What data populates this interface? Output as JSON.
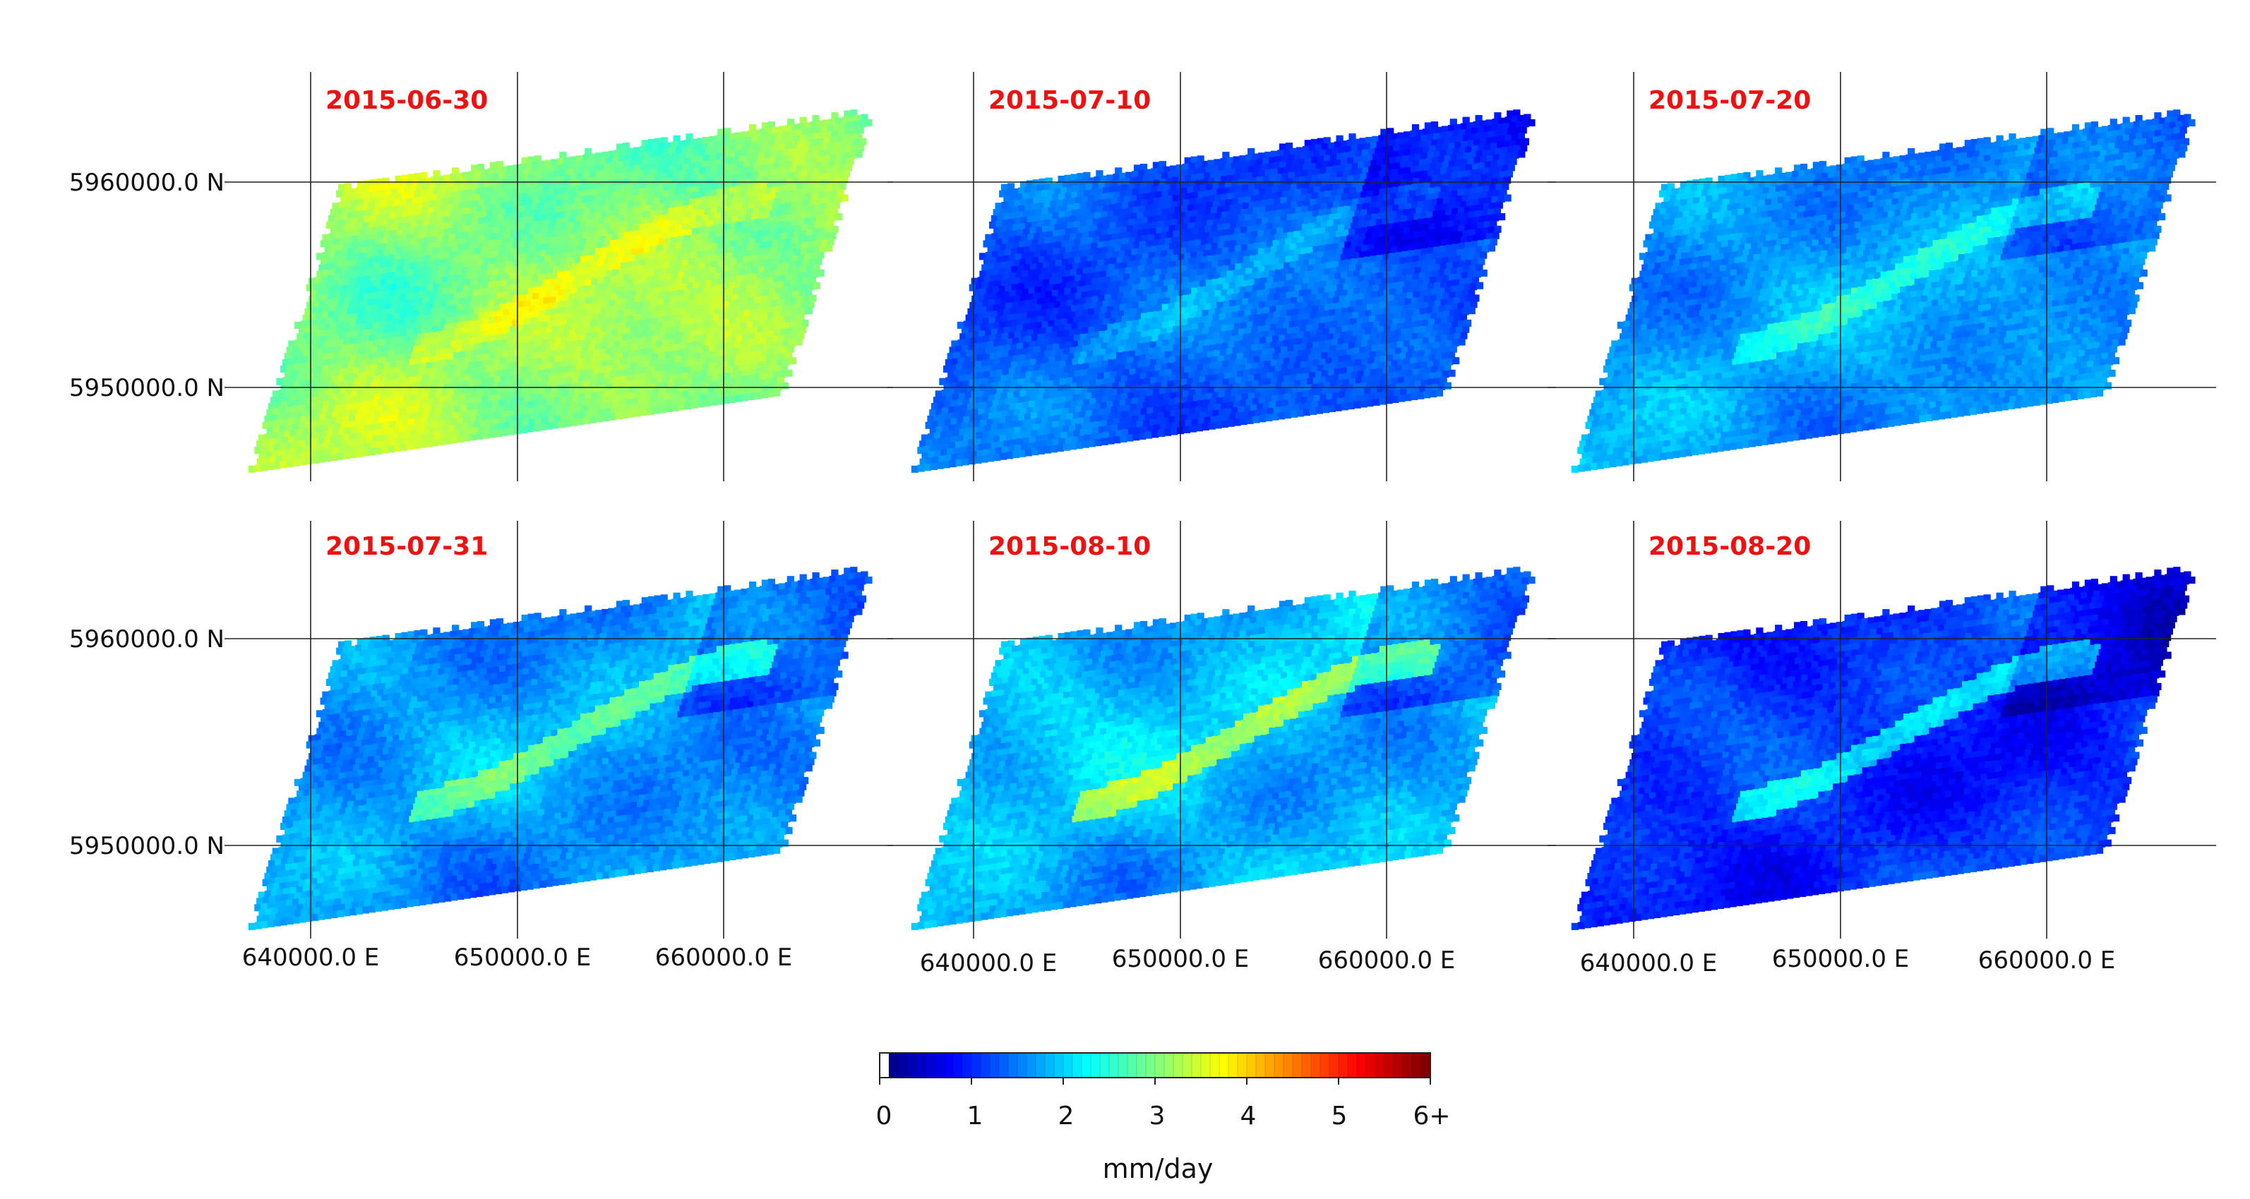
{
  "panels": [
    {
      "date": "2015-06-30",
      "base": 3.1,
      "variation": 0.55,
      "low_east": 0.05,
      "river": 0.45
    },
    {
      "date": "2015-07-10",
      "base": 1.15,
      "variation": 0.4,
      "low_east": 0.55,
      "river": 0.35
    },
    {
      "date": "2015-07-20",
      "base": 1.55,
      "variation": 0.4,
      "low_east": 0.45,
      "river": 0.6
    },
    {
      "date": "2015-07-31",
      "base": 1.55,
      "variation": 0.45,
      "low_east": 0.5,
      "river": 1.0
    },
    {
      "date": "2015-08-10",
      "base": 1.75,
      "variation": 0.5,
      "low_east": 0.6,
      "river": 1.3
    },
    {
      "date": "2015-08-20",
      "base": 0.85,
      "variation": 0.45,
      "low_east": 0.5,
      "river": 1.1
    }
  ],
  "axes": {
    "y_ticks": [
      "5960000.0 N",
      "5950000.0 N"
    ],
    "x_ticks": [
      "640000.0 E",
      "650000.0 E",
      "660000.0 E"
    ]
  },
  "colorbar": {
    "ticks": [
      "0",
      "1",
      "2",
      "3",
      "4",
      "5",
      "6+"
    ],
    "unit": "mm/day",
    "min": 0,
    "max": 6,
    "colormap": "jet",
    "lowest_bin_color": "#ffffff"
  }
}
